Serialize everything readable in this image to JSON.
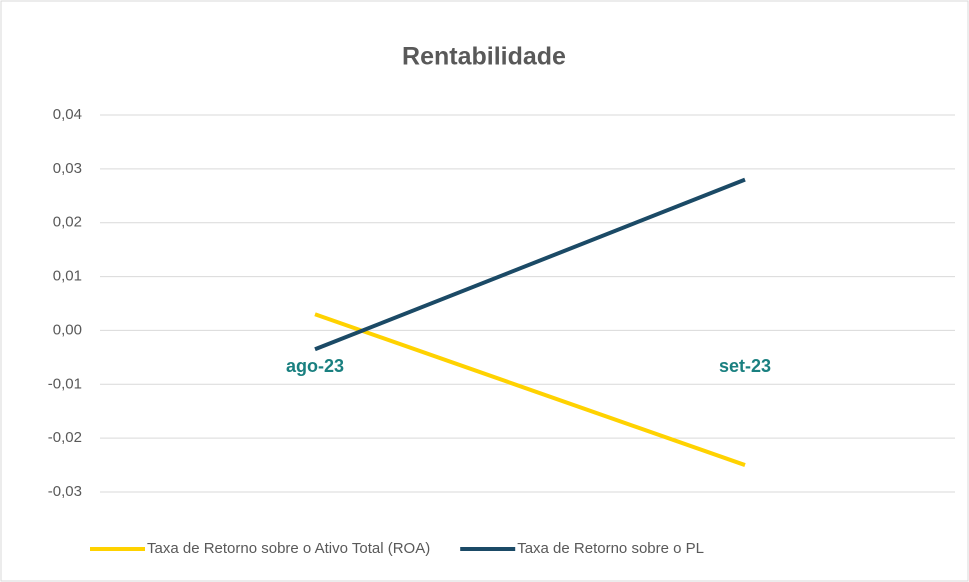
{
  "chart_data": {
    "type": "line",
    "title": "Rentabilidade",
    "categories": [
      "ago-23",
      "set-23"
    ],
    "series": [
      {
        "name": "Taxa de Retorno sobre o Ativo Total (ROA)",
        "color": "#ffd200",
        "values": [
          0.003,
          -0.025
        ]
      },
      {
        "name": "Taxa de Retorno sobre o PL",
        "color": "#1b4a66",
        "values": [
          -0.0035,
          0.028
        ]
      }
    ],
    "ylim": [
      -0.03,
      0.04
    ],
    "yticks": [
      {
        "value": -0.03,
        "label": "-0,03"
      },
      {
        "value": -0.02,
        "label": "-0,02"
      },
      {
        "value": -0.01,
        "label": "-0,01"
      },
      {
        "value": 0,
        "label": "0,00"
      },
      {
        "value": 0.01,
        "label": "0,01"
      },
      {
        "value": 0.02,
        "label": "0,02"
      },
      {
        "value": 0.03,
        "label": "0,03"
      },
      {
        "value": 0.04,
        "label": "0,04"
      }
    ],
    "grid": true,
    "legend": "bottom"
  }
}
